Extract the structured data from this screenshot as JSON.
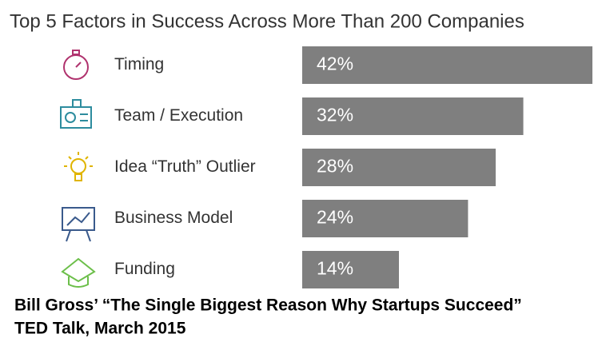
{
  "chart_data": {
    "type": "bar",
    "orientation": "horizontal",
    "title": "Top 5 Factors in Success Across More Than 200 Companies",
    "categories": [
      "Timing",
      "Team / Execution",
      "Idea “Truth” Outlier",
      "Business Model",
      "Funding"
    ],
    "values": [
      42,
      32,
      28,
      24,
      14
    ],
    "value_labels": [
      "42%",
      "32%",
      "28%",
      "24%",
      "14%"
    ],
    "color": "#7f7f7f",
    "caption": [
      "Bill Gross’  “The Single Biggest Reason Why Startups Succeed”",
      "TED Talk, March 2015"
    ]
  }
}
